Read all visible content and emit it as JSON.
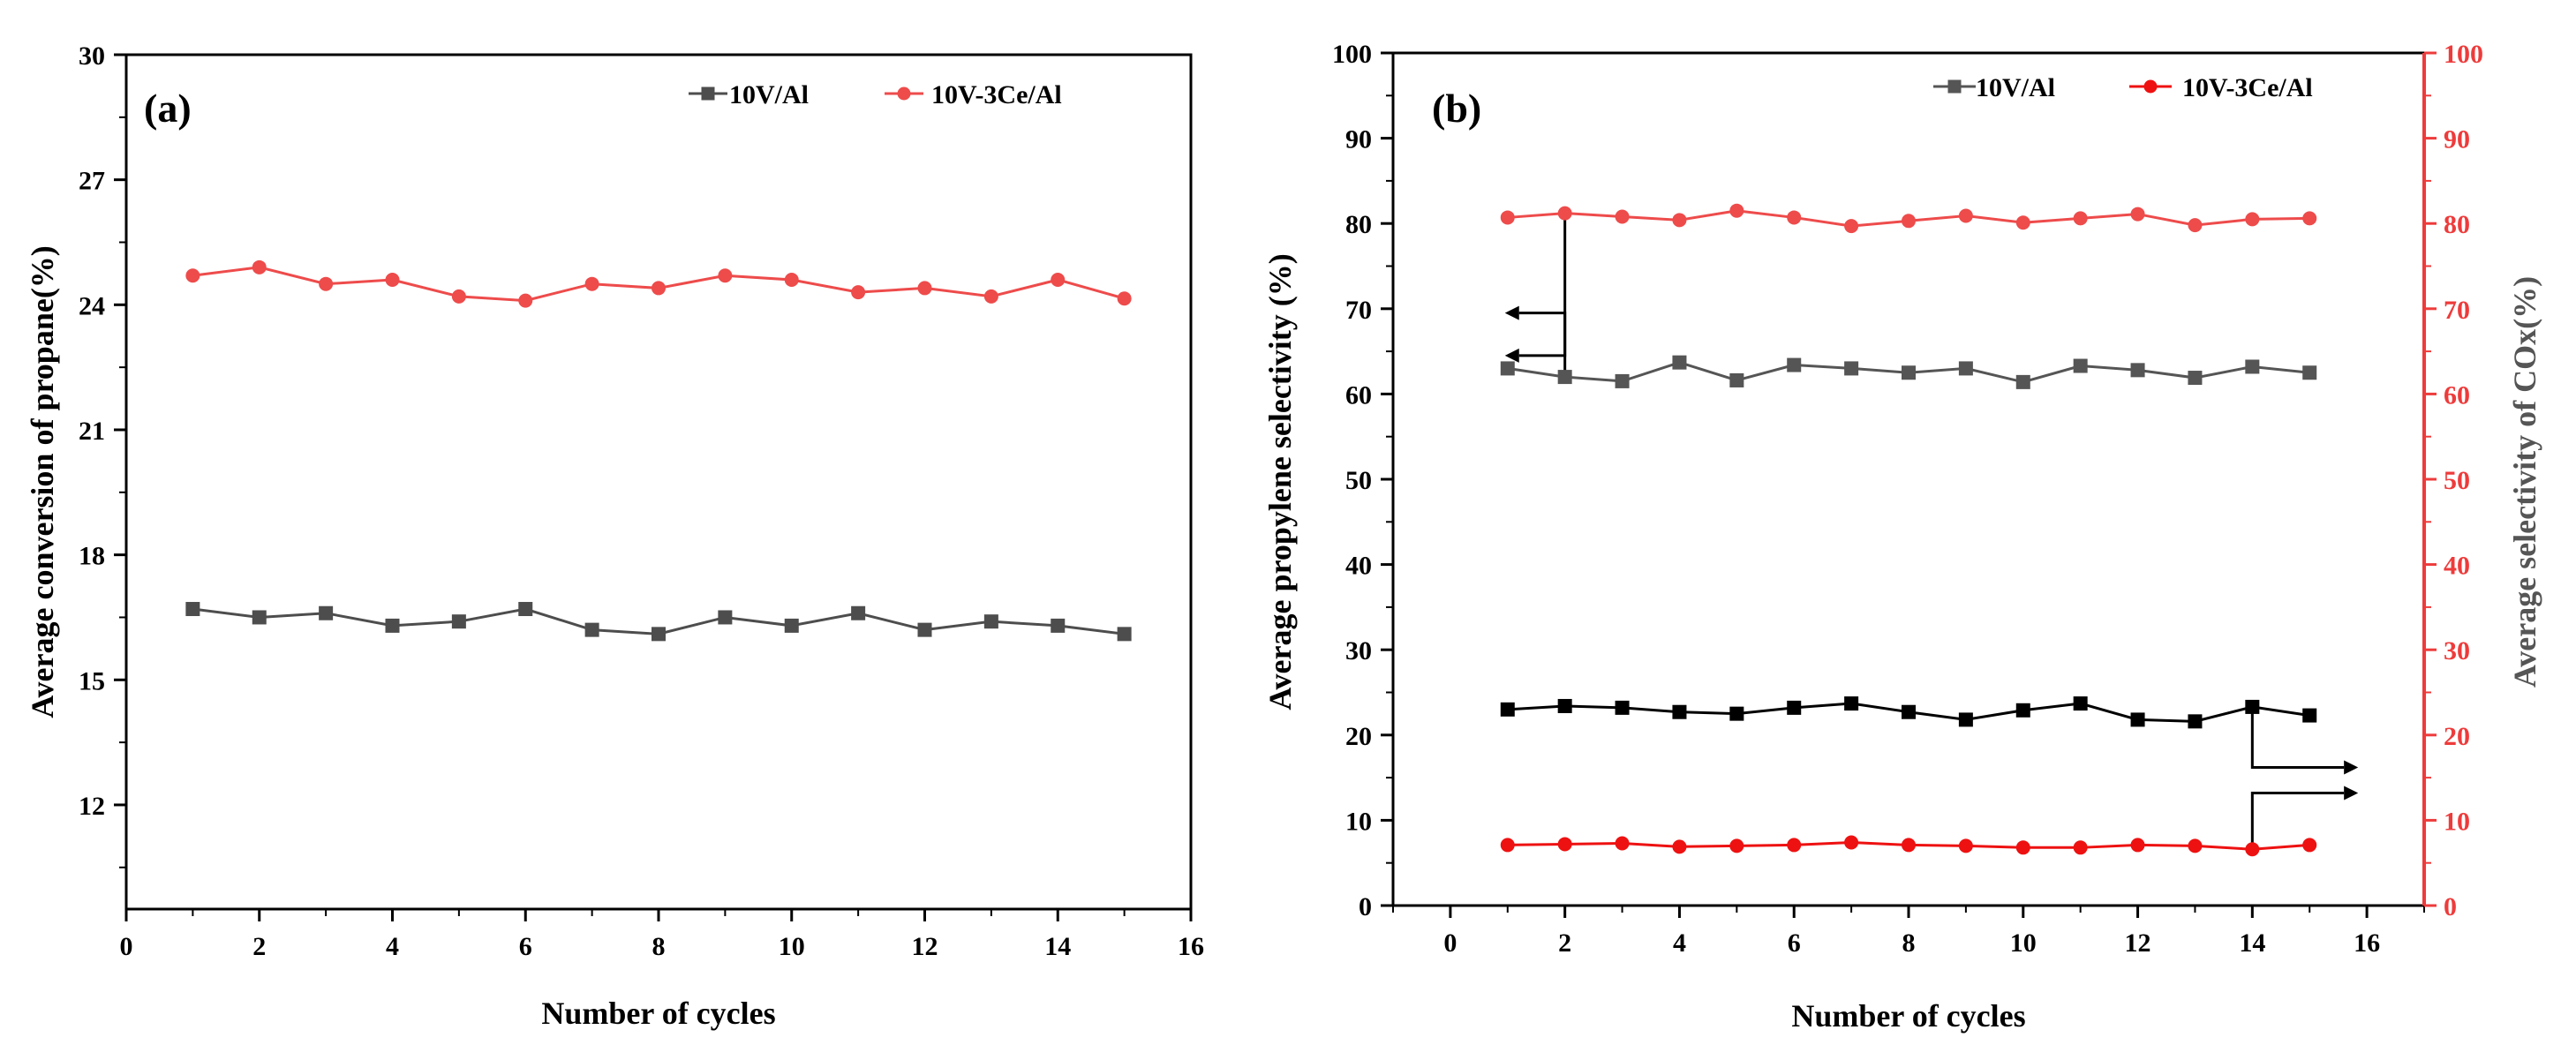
{
  "chart_data": [
    {
      "type": "line",
      "panel_label": "(a)",
      "xlabel": "Number of cycles",
      "ylabel": "Average conversion of propane(%)",
      "xlim": [
        0,
        16
      ],
      "ylim": [
        9.5,
        30
      ],
      "xticks": [
        "0",
        "2",
        "4",
        "6",
        "8",
        "10",
        "12",
        "14",
        "16"
      ],
      "yticks": [
        "12",
        "15",
        "18",
        "21",
        "24",
        "27",
        "30"
      ],
      "legend_position": "top-right",
      "x": [
        1,
        2,
        3,
        4,
        5,
        6,
        7,
        8,
        9,
        10,
        11,
        12,
        13,
        14,
        15
      ],
      "series": [
        {
          "name": "10V/Al",
          "color": "#4d4d4d",
          "marker": "square",
          "values": [
            16.7,
            16.5,
            16.6,
            16.3,
            16.4,
            16.7,
            16.2,
            16.1,
            16.5,
            16.3,
            16.6,
            16.2,
            16.4,
            16.3,
            16.1
          ]
        },
        {
          "name": "10V-3Ce/Al",
          "color": "#ee4b4b",
          "marker": "circle",
          "values": [
            24.7,
            24.9,
            24.5,
            24.6,
            24.2,
            24.1,
            24.5,
            24.4,
            24.7,
            24.6,
            24.3,
            24.4,
            24.2,
            24.6,
            24.15
          ]
        }
      ]
    },
    {
      "type": "line",
      "panel_label": "(b)",
      "xlabel": "Number of cycles",
      "ylabel": "Average propylene selectivity (%)",
      "ylabel_right": "Average selectivity of COx(%)",
      "xlim": [
        -1,
        17
      ],
      "ylim": [
        0,
        100
      ],
      "ylim_right": [
        0,
        100
      ],
      "xticks": [
        "0",
        "2",
        "4",
        "6",
        "8",
        "10",
        "12",
        "14",
        "16"
      ],
      "yticks": [
        "0",
        "10",
        "20",
        "30",
        "40",
        "50",
        "60",
        "70",
        "80",
        "90",
        "100"
      ],
      "yticks_right": [
        "0",
        "10",
        "20",
        "30",
        "40",
        "50",
        "60",
        "70",
        "80",
        "90",
        "100"
      ],
      "legend_position": "top-right",
      "x": [
        1,
        2,
        3,
        4,
        5,
        6,
        7,
        8,
        9,
        10,
        11,
        12,
        13,
        14,
        15
      ],
      "series": [
        {
          "name": "10V/Al",
          "axis": "left",
          "color": "#555555",
          "marker": "square",
          "values": [
            63.0,
            62.0,
            61.5,
            63.7,
            61.6,
            63.4,
            63.0,
            62.5,
            63.0,
            61.4,
            63.3,
            62.8,
            61.9,
            63.2,
            62.5
          ]
        },
        {
          "name": "10V-3Ce/Al",
          "axis": "left",
          "color": "#ee4b4b",
          "marker": "circle",
          "values": [
            80.7,
            81.2,
            80.8,
            80.4,
            81.5,
            80.7,
            79.7,
            80.3,
            80.9,
            80.1,
            80.6,
            81.1,
            79.8,
            80.5,
            80.6
          ]
        },
        {
          "name": "10V/Al COx",
          "axis": "right",
          "color": "#000000",
          "marker": "square",
          "values": [
            23.0,
            23.4,
            23.2,
            22.7,
            22.5,
            23.2,
            23.7,
            22.7,
            21.8,
            22.9,
            23.7,
            21.8,
            21.6,
            23.3,
            22.3
          ]
        },
        {
          "name": "10V-3Ce/Al COx",
          "axis": "right",
          "color": "#ee1111",
          "marker": "circle",
          "values": [
            7.1,
            7.2,
            7.3,
            6.9,
            7.0,
            7.1,
            7.4,
            7.1,
            7.0,
            6.8,
            6.8,
            7.1,
            7.0,
            6.6,
            7.1
          ]
        }
      ]
    }
  ]
}
